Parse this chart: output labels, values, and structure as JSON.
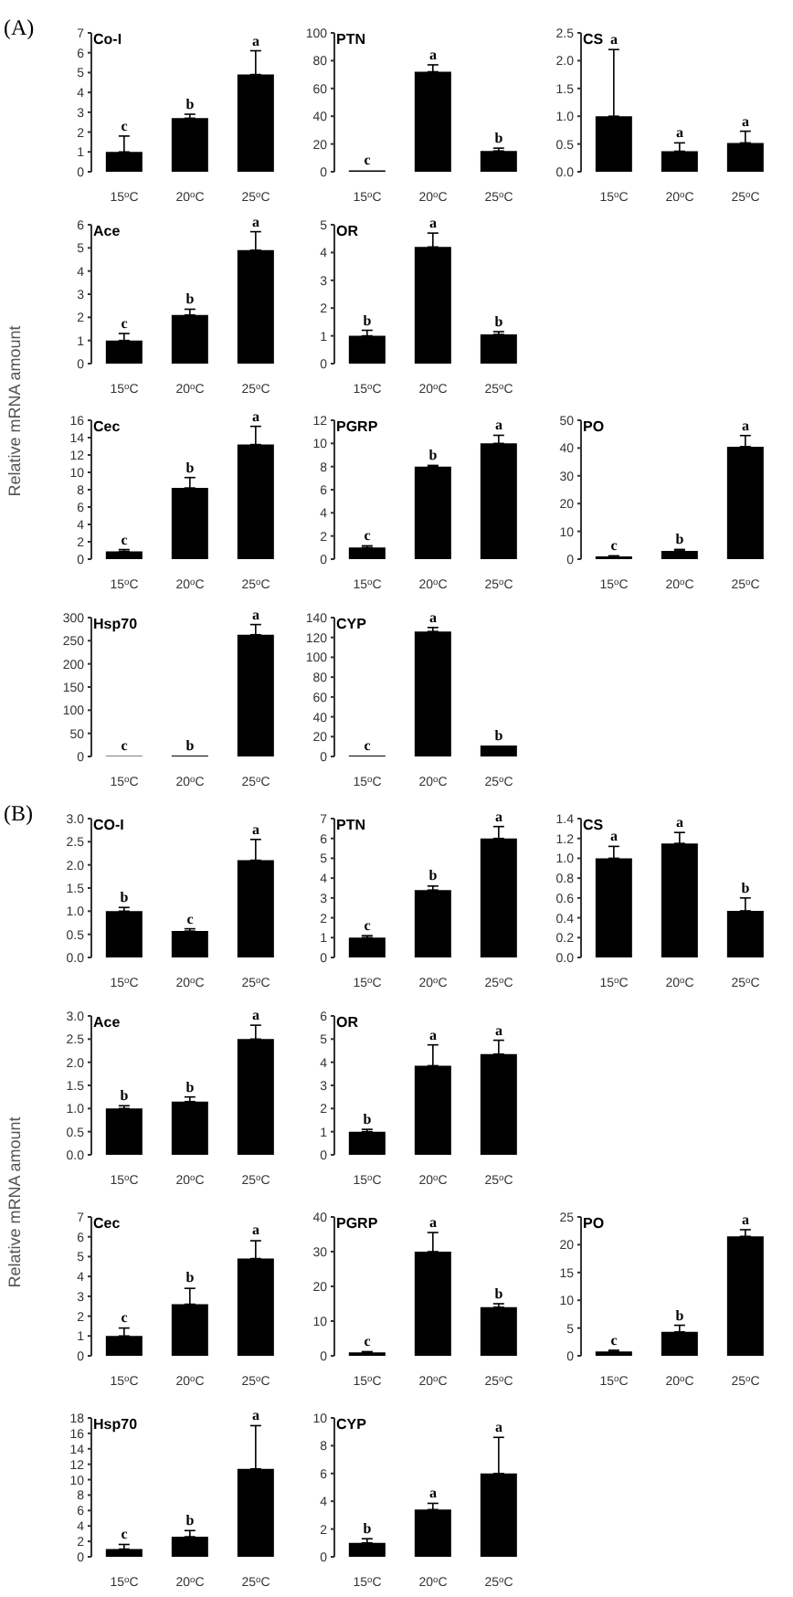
{
  "chart_data": [
    {
      "type": "bar",
      "title": "Co-I",
      "categories": [
        "15$^{o}$C",
        "20$^{o}$C",
        "25$^{o}$C"
      ],
      "values": [
        1,
        2.7,
        4.9
      ],
      "errors": [
        [
          1,
          1.8
        ],
        [
          2.7,
          2.9
        ],
        [
          4.9,
          6.1
        ]
      ],
      "color": "#000000",
      "ylim": [
        0,
        7
      ],
      "yticks": [
        0,
        1,
        2,
        3,
        4,
        5,
        6,
        7
      ],
      "annotations": [
        "(A)",
        {
          "text": "c",
          "x": "15$^{o}$C",
          "y": 1.8
        },
        {
          "text": "b",
          "x": "20$^{o}$C",
          "y": 2.9
        },
        {
          "text": "a",
          "x": "25$^{o}$C",
          "y": 6.1
        }
      ]
    },
    {
      "type": "bar",
      "title": "PTN",
      "categories": [
        "15$^{o}$C",
        "20$^{o}$C",
        "25$^{o}$C"
      ],
      "values": [
        1,
        72,
        15
      ],
      "errors": [
        null,
        [
          72,
          77
        ],
        [
          15,
          17
        ]
      ],
      "color": "#000000",
      "ylim": [
        0,
        100
      ],
      "yticks": [
        0,
        20,
        40,
        60,
        80,
        100
      ],
      "annotations": [
        {
          "text": "c",
          "x": "15$^{o}$C",
          "y": 1
        },
        {
          "text": "a",
          "x": "20$^{o}$C",
          "y": 77
        },
        {
          "text": "b",
          "x": "25$^{o}$C",
          "y": 17
        }
      ]
    },
    {
      "type": "bar",
      "title": "CS",
      "categories": [
        "15$^{o}$C",
        "20$^{o}$C",
        "25$^{o}$C"
      ],
      "values": [
        1.0,
        0.37,
        0.52
      ],
      "errors": [
        [
          1.0,
          2.2
        ],
        [
          0.37,
          0.52
        ],
        [
          0.52,
          0.73
        ]
      ],
      "color": "#000000",
      "ylim": [
        0,
        2.5
      ],
      "yticks": [
        {
          "value": 0,
          "label": "0.0"
        },
        0.5,
        {
          "value": 1,
          "label": "1.0"
        },
        1.5,
        {
          "value": 2,
          "label": "2.0"
        },
        2.5
      ],
      "annotations": [
        {
          "text": "a",
          "x": "15$^{o}$C",
          "y": 2.2
        },
        {
          "text": "a",
          "x": "20$^{o}$C",
          "y": 0.52
        },
        {
          "text": "a",
          "x": "25$^{o}$C",
          "y": 0.73
        }
      ]
    },
    {
      "type": "bar",
      "title": "Ace",
      "ylabel": "Relative mRNA amount",
      "categories": [
        "15$^{o}$C",
        "20$^{o}$C",
        "25$^{o}$C"
      ],
      "values": [
        1,
        2.1,
        4.9
      ],
      "errors": [
        [
          1,
          1.3
        ],
        [
          2.1,
          2.35
        ],
        [
          4.9,
          5.7
        ]
      ],
      "color": "#000000",
      "ylim": [
        0,
        6
      ],
      "yticks": [
        0,
        1,
        2,
        3,
        4,
        5,
        6
      ],
      "annotations": [
        {
          "text": "c",
          "x": "15$^{o}$C",
          "y": 1.3
        },
        {
          "text": "b",
          "x": "20$^{o}$C",
          "y": 2.35
        },
        {
          "text": "a",
          "x": "25$^{o}$C",
          "y": 5.7
        }
      ]
    },
    {
      "type": "bar",
      "title": "OR",
      "categories": [
        "15$^{o}$C",
        "20$^{o}$C",
        "25$^{o}$C"
      ],
      "values": [
        1.0,
        4.2,
        1.05
      ],
      "errors": [
        [
          1.0,
          1.2
        ],
        [
          4.2,
          4.7
        ],
        [
          1.05,
          1.15
        ]
      ],
      "color": "#000000",
      "ylim": [
        0,
        5
      ],
      "yticks": [
        0,
        1,
        2,
        3,
        4,
        5
      ],
      "annotations": [
        {
          "text": "b",
          "x": "15$^{o}$C",
          "y": 1.2
        },
        {
          "text": "a",
          "x": "20$^{o}$C",
          "y": 4.7
        },
        {
          "text": "b",
          "x": "25$^{o}$C",
          "y": 1.15
        }
      ]
    },
    {
      "type": "bar",
      "title": "Cec",
      "categories": [
        "15$^{o}$C",
        "20$^{o}$C",
        "25$^{o}$C"
      ],
      "values": [
        0.9,
        8.2,
        13.2
      ],
      "errors": [
        [
          0.9,
          1.1
        ],
        [
          8.2,
          9.4
        ],
        [
          13.2,
          15.3
        ]
      ],
      "color": "#000000",
      "ylim": [
        0,
        16
      ],
      "yticks": [
        0,
        2,
        4,
        6,
        8,
        10,
        12,
        14,
        16
      ],
      "annotations": [
        {
          "text": "c",
          "x": "15$^{o}$C",
          "y": 1.1
        },
        {
          "text": "b",
          "x": "20$^{o}$C",
          "y": 9.4
        },
        {
          "text": "a",
          "x": "25$^{o}$C",
          "y": 15.3
        }
      ]
    },
    {
      "type": "bar",
      "title": "PGRP",
      "categories": [
        "15$^{o}$C",
        "20$^{o}$C",
        "25$^{o}$C"
      ],
      "values": [
        1.0,
        8.0,
        10.0
      ],
      "errors": [
        [
          1.0,
          1.15
        ],
        [
          8.0,
          8.1
        ],
        [
          10.0,
          10.7
        ]
      ],
      "color": "#000000",
      "ylim": [
        0,
        12
      ],
      "yticks": [
        0,
        2,
        4,
        6,
        8,
        10,
        12
      ],
      "annotations": [
        {
          "text": "c",
          "x": "15$^{o}$C",
          "y": 1.15
        },
        {
          "text": "b",
          "x": "20$^{o}$C",
          "y": 8.1
        },
        {
          "text": "a",
          "x": "25$^{o}$C",
          "y": 10.7
        }
      ]
    },
    {
      "type": "bar",
      "title": "PO",
      "categories": [
        "15$^{o}$C",
        "20$^{o}$C",
        "25$^{o}$C"
      ],
      "values": [
        1.0,
        3.0,
        40.5
      ],
      "errors": [
        [
          1.0,
          1.2
        ],
        [
          3.0,
          3.5
        ],
        [
          40.5,
          44.5
        ]
      ],
      "color": "#000000",
      "ylim": [
        0,
        50
      ],
      "yticks": [
        0,
        10,
        20,
        30,
        40,
        50
      ],
      "annotations": [
        {
          "text": "c",
          "x": "15$^{o}$C",
          "y": 1.2
        },
        {
          "text": "b",
          "x": "20$^{o}$C",
          "y": 3.5
        },
        {
          "text": "a",
          "x": "25$^{o}$C",
          "y": 44.5
        }
      ]
    },
    {
      "type": "bar",
      "title": "Hsp70",
      "categories": [
        "15$^{o}$C",
        "20$^{o}$C",
        "25$^{o}$C"
      ],
      "values": [
        1,
        2,
        263
      ],
      "errors": [
        null,
        null,
        [
          263,
          285
        ]
      ],
      "color": "#000000",
      "ylim": [
        0,
        300
      ],
      "yticks": [
        0,
        50,
        100,
        150,
        200,
        250,
        300
      ],
      "annotations": [
        {
          "text": "c",
          "x": "15$^{o}$C",
          "y": 1
        },
        {
          "text": "b",
          "x": "20$^{o}$C",
          "y": 2
        },
        {
          "text": "a",
          "x": "25$^{o}$C",
          "y": 285
        }
      ]
    },
    {
      "type": "bar",
      "title": "CYP",
      "categories": [
        "15$^{o}$C",
        "20$^{o}$C",
        "25$^{o}$C"
      ],
      "values": [
        1,
        126,
        11
      ],
      "errors": [
        null,
        [
          126,
          130
        ],
        null
      ],
      "color": "#000000",
      "ylim": [
        0,
        140
      ],
      "yticks": [
        0,
        20,
        40,
        60,
        80,
        100,
        120,
        140
      ],
      "annotations": [
        {
          "text": "c",
          "x": "15$^{o}$C",
          "y": 1
        },
        {
          "text": "a",
          "x": "20$^{o}$C",
          "y": 130
        },
        {
          "text": "b",
          "x": "25$^{o}$C",
          "y": 11
        }
      ]
    },
    {
      "type": "bar",
      "title": "CO-I",
      "categories": [
        "15$^{o}$C",
        "20$^{o}$C",
        "25$^{o}$C"
      ],
      "values": [
        1.0,
        0.57,
        2.1
      ],
      "errors": [
        [
          1.0,
          1.08
        ],
        [
          0.57,
          0.62
        ],
        [
          2.1,
          2.55
        ]
      ],
      "color": "#000000",
      "ylim": [
        0,
        3
      ],
      "yticks": [
        {
          "value": 0,
          "label": "0.0"
        },
        0.5,
        {
          "value": 1,
          "label": "1.0"
        },
        1.5,
        {
          "value": 2,
          "label": "2.0"
        },
        2.5,
        {
          "value": 3,
          "label": "3.0"
        }
      ],
      "annotations": [
        "(B)",
        {
          "text": "b",
          "x": "15$^{o}$C",
          "y": 1.08
        },
        {
          "text": "c",
          "x": "20$^{o}$C",
          "y": 0.62
        },
        {
          "text": "a",
          "x": "25$^{o}$C",
          "y": 2.55
        }
      ]
    },
    {
      "type": "bar",
      "title": "PTN",
      "categories": [
        "15$^{o}$C",
        "20$^{o}$C",
        "25$^{o}$C"
      ],
      "values": [
        1.0,
        3.4,
        6.0
      ],
      "errors": [
        [
          1.0,
          1.1
        ],
        [
          3.4,
          3.6
        ],
        [
          6.0,
          6.6
        ]
      ],
      "color": "#000000",
      "ylim": [
        0,
        7
      ],
      "yticks": [
        0,
        1,
        2,
        3,
        4,
        5,
        6,
        7
      ],
      "annotations": [
        {
          "text": "c",
          "x": "15$^{o}$C",
          "y": 1.1
        },
        {
          "text": "b",
          "x": "20$^{o}$C",
          "y": 3.65
        },
        {
          "text": "a",
          "x": "25$^{o}$C",
          "y": 6.6
        }
      ]
    },
    {
      "type": "bar",
      "title": "CS",
      "categories": [
        "15$^{o}$C",
        "20$^{o}$C",
        "25$^{o}$C"
      ],
      "values": [
        1.0,
        1.15,
        0.47
      ],
      "errors": [
        [
          1.0,
          1.12
        ],
        [
          1.15,
          1.26
        ],
        [
          0.47,
          0.6
        ]
      ],
      "color": "#000000",
      "ylim": [
        0,
        1.4
      ],
      "yticks": [
        {
          "value": 0,
          "label": "0.0"
        },
        0.2,
        0.4,
        0.6,
        0.8,
        {
          "value": 1,
          "label": "1.0"
        },
        1.2,
        1.4
      ],
      "annotations": [
        {
          "text": "a",
          "x": "15$^{o}$C",
          "y": 1.12
        },
        {
          "text": "a",
          "x": "20$^{o}$C",
          "y": 1.26
        },
        {
          "text": "b",
          "x": "25$^{o}$C",
          "y": 0.6
        }
      ]
    },
    {
      "type": "bar",
      "title": "Ace",
      "ylabel": "Relative mRNA amount",
      "categories": [
        "15$^{o}$C",
        "20$^{o}$C",
        "25$^{o}$C"
      ],
      "values": [
        1.0,
        1.15,
        2.5
      ],
      "errors": [
        [
          1.0,
          1.06
        ],
        [
          1.15,
          1.25
        ],
        [
          2.5,
          2.8
        ]
      ],
      "color": "#000000",
      "ylim": [
        0,
        3
      ],
      "yticks": [
        {
          "value": 0,
          "label": "0.0"
        },
        0.5,
        {
          "value": 1,
          "label": "1.0"
        },
        1.5,
        {
          "value": 2,
          "label": "2.0"
        },
        2.5,
        {
          "value": 3,
          "label": "3.0"
        }
      ],
      "annotations": [
        {
          "text": "b",
          "x": "15$^{o}$C",
          "y": 1.06
        },
        {
          "text": "b",
          "x": "20$^{o}$C",
          "y": 1.25
        },
        {
          "text": "a",
          "x": "25$^{o}$C",
          "y": 2.8
        }
      ]
    },
    {
      "type": "bar",
      "title": "OR",
      "categories": [
        "15$^{o}$C",
        "20$^{o}$C",
        "25$^{o}$C"
      ],
      "values": [
        1.0,
        3.85,
        4.35
      ],
      "errors": [
        [
          1.0,
          1.1
        ],
        [
          3.85,
          4.75
        ],
        [
          4.35,
          4.95
        ]
      ],
      "color": "#000000",
      "ylim": [
        0,
        6
      ],
      "yticks": [
        0,
        1,
        2,
        3,
        4,
        5,
        6
      ],
      "annotations": [
        {
          "text": "b",
          "x": "15$^{o}$C",
          "y": 1.1
        },
        {
          "text": "a",
          "x": "20$^{o}$C",
          "y": 4.75
        },
        {
          "text": "a",
          "x": "25$^{o}$C",
          "y": 4.95
        }
      ]
    },
    {
      "type": "bar",
      "title": "Cec",
      "categories": [
        "15$^{o}$C",
        "20$^{o}$C",
        "25$^{o}$C"
      ],
      "values": [
        1.0,
        2.6,
        4.9
      ],
      "errors": [
        [
          1.0,
          1.4
        ],
        [
          2.6,
          3.4
        ],
        [
          4.9,
          5.8
        ]
      ],
      "color": "#000000",
      "ylim": [
        0,
        7
      ],
      "yticks": [
        0,
        1,
        2,
        3,
        4,
        5,
        6,
        7
      ],
      "annotations": [
        {
          "text": "c",
          "x": "15$^{o}$C",
          "y": 1.45
        },
        {
          "text": "b",
          "x": "20$^{o}$C",
          "y": 3.45
        },
        {
          "text": "a",
          "x": "25$^{o}$C",
          "y": 5.85
        }
      ]
    },
    {
      "type": "bar",
      "title": "PGRP",
      "categories": [
        "15$^{o}$C",
        "20$^{o}$C",
        "25$^{o}$C"
      ],
      "values": [
        1,
        30,
        14
      ],
      "errors": [
        [
          1,
          1.2
        ],
        [
          30,
          35.5
        ],
        [
          14,
          15
        ]
      ],
      "color": "#000000",
      "ylim": [
        0,
        40
      ],
      "yticks": [
        0,
        10,
        20,
        30,
        40
      ],
      "annotations": [
        {
          "text": "c",
          "x": "15$^{o}$C",
          "y": 1.2
        },
        {
          "text": "a",
          "x": "20$^{o}$C",
          "y": 35.5
        },
        {
          "text": "b",
          "x": "25$^{o}$C",
          "y": 15
        }
      ]
    },
    {
      "type": "bar",
      "title": "PO",
      "categories": [
        "15$^{o}$C",
        "20$^{o}$C",
        "25$^{o}$C"
      ],
      "values": [
        0.8,
        4.3,
        21.5
      ],
      "errors": [
        [
          0.8,
          1.0
        ],
        [
          4.3,
          5.5
        ],
        [
          21.5,
          22.7
        ]
      ],
      "color": "#000000",
      "ylim": [
        0,
        25
      ],
      "yticks": [
        0,
        5,
        10,
        15,
        20,
        25
      ],
      "annotations": [
        {
          "text": "c",
          "x": "15$^{o}$C",
          "y": 1.0
        },
        {
          "text": "b",
          "x": "20$^{o}$C",
          "y": 5.5
        },
        {
          "text": "a",
          "x": "25$^{o}$C",
          "y": 22.7
        }
      ]
    },
    {
      "type": "bar",
      "title": "Hsp70",
      "categories": [
        "15$^{o}$C",
        "20$^{o}$C",
        "25$^{o}$C"
      ],
      "values": [
        1.0,
        2.6,
        11.4
      ],
      "errors": [
        [
          1.0,
          1.6
        ],
        [
          2.6,
          3.4
        ],
        [
          11.4,
          17.0
        ]
      ],
      "color": "#000000",
      "ylim": [
        0,
        18
      ],
      "yticks": [
        0,
        2,
        4,
        6,
        8,
        10,
        12,
        14,
        16,
        18
      ],
      "annotations": [
        {
          "text": "c",
          "x": "15$^{o}$C",
          "y": 1.6
        },
        {
          "text": "b",
          "x": "20$^{o}$C",
          "y": 3.4
        },
        {
          "text": "a",
          "x": "25$^{o}$C",
          "y": 17.0
        }
      ]
    },
    {
      "type": "bar",
      "title": "CYP",
      "categories": [
        "15$^{o}$C",
        "20$^{o}$C",
        "25$^{o}$C"
      ],
      "values": [
        1.0,
        3.4,
        6.0
      ],
      "errors": [
        [
          1.0,
          1.3
        ],
        [
          3.4,
          3.85
        ],
        [
          6.0,
          8.6
        ]
      ],
      "color": "#000000",
      "ylim": [
        0,
        10
      ],
      "yticks": [
        0,
        2,
        4,
        6,
        8,
        10
      ],
      "annotations": [
        {
          "text": "b",
          "x": "15$^{o}$C",
          "y": 1.3
        },
        {
          "text": "a",
          "x": "20$^{o}$C",
          "y": 3.85
        },
        {
          "text": "a",
          "x": "25$^{o}$C",
          "y": 8.6
        }
      ]
    }
  ]
}
